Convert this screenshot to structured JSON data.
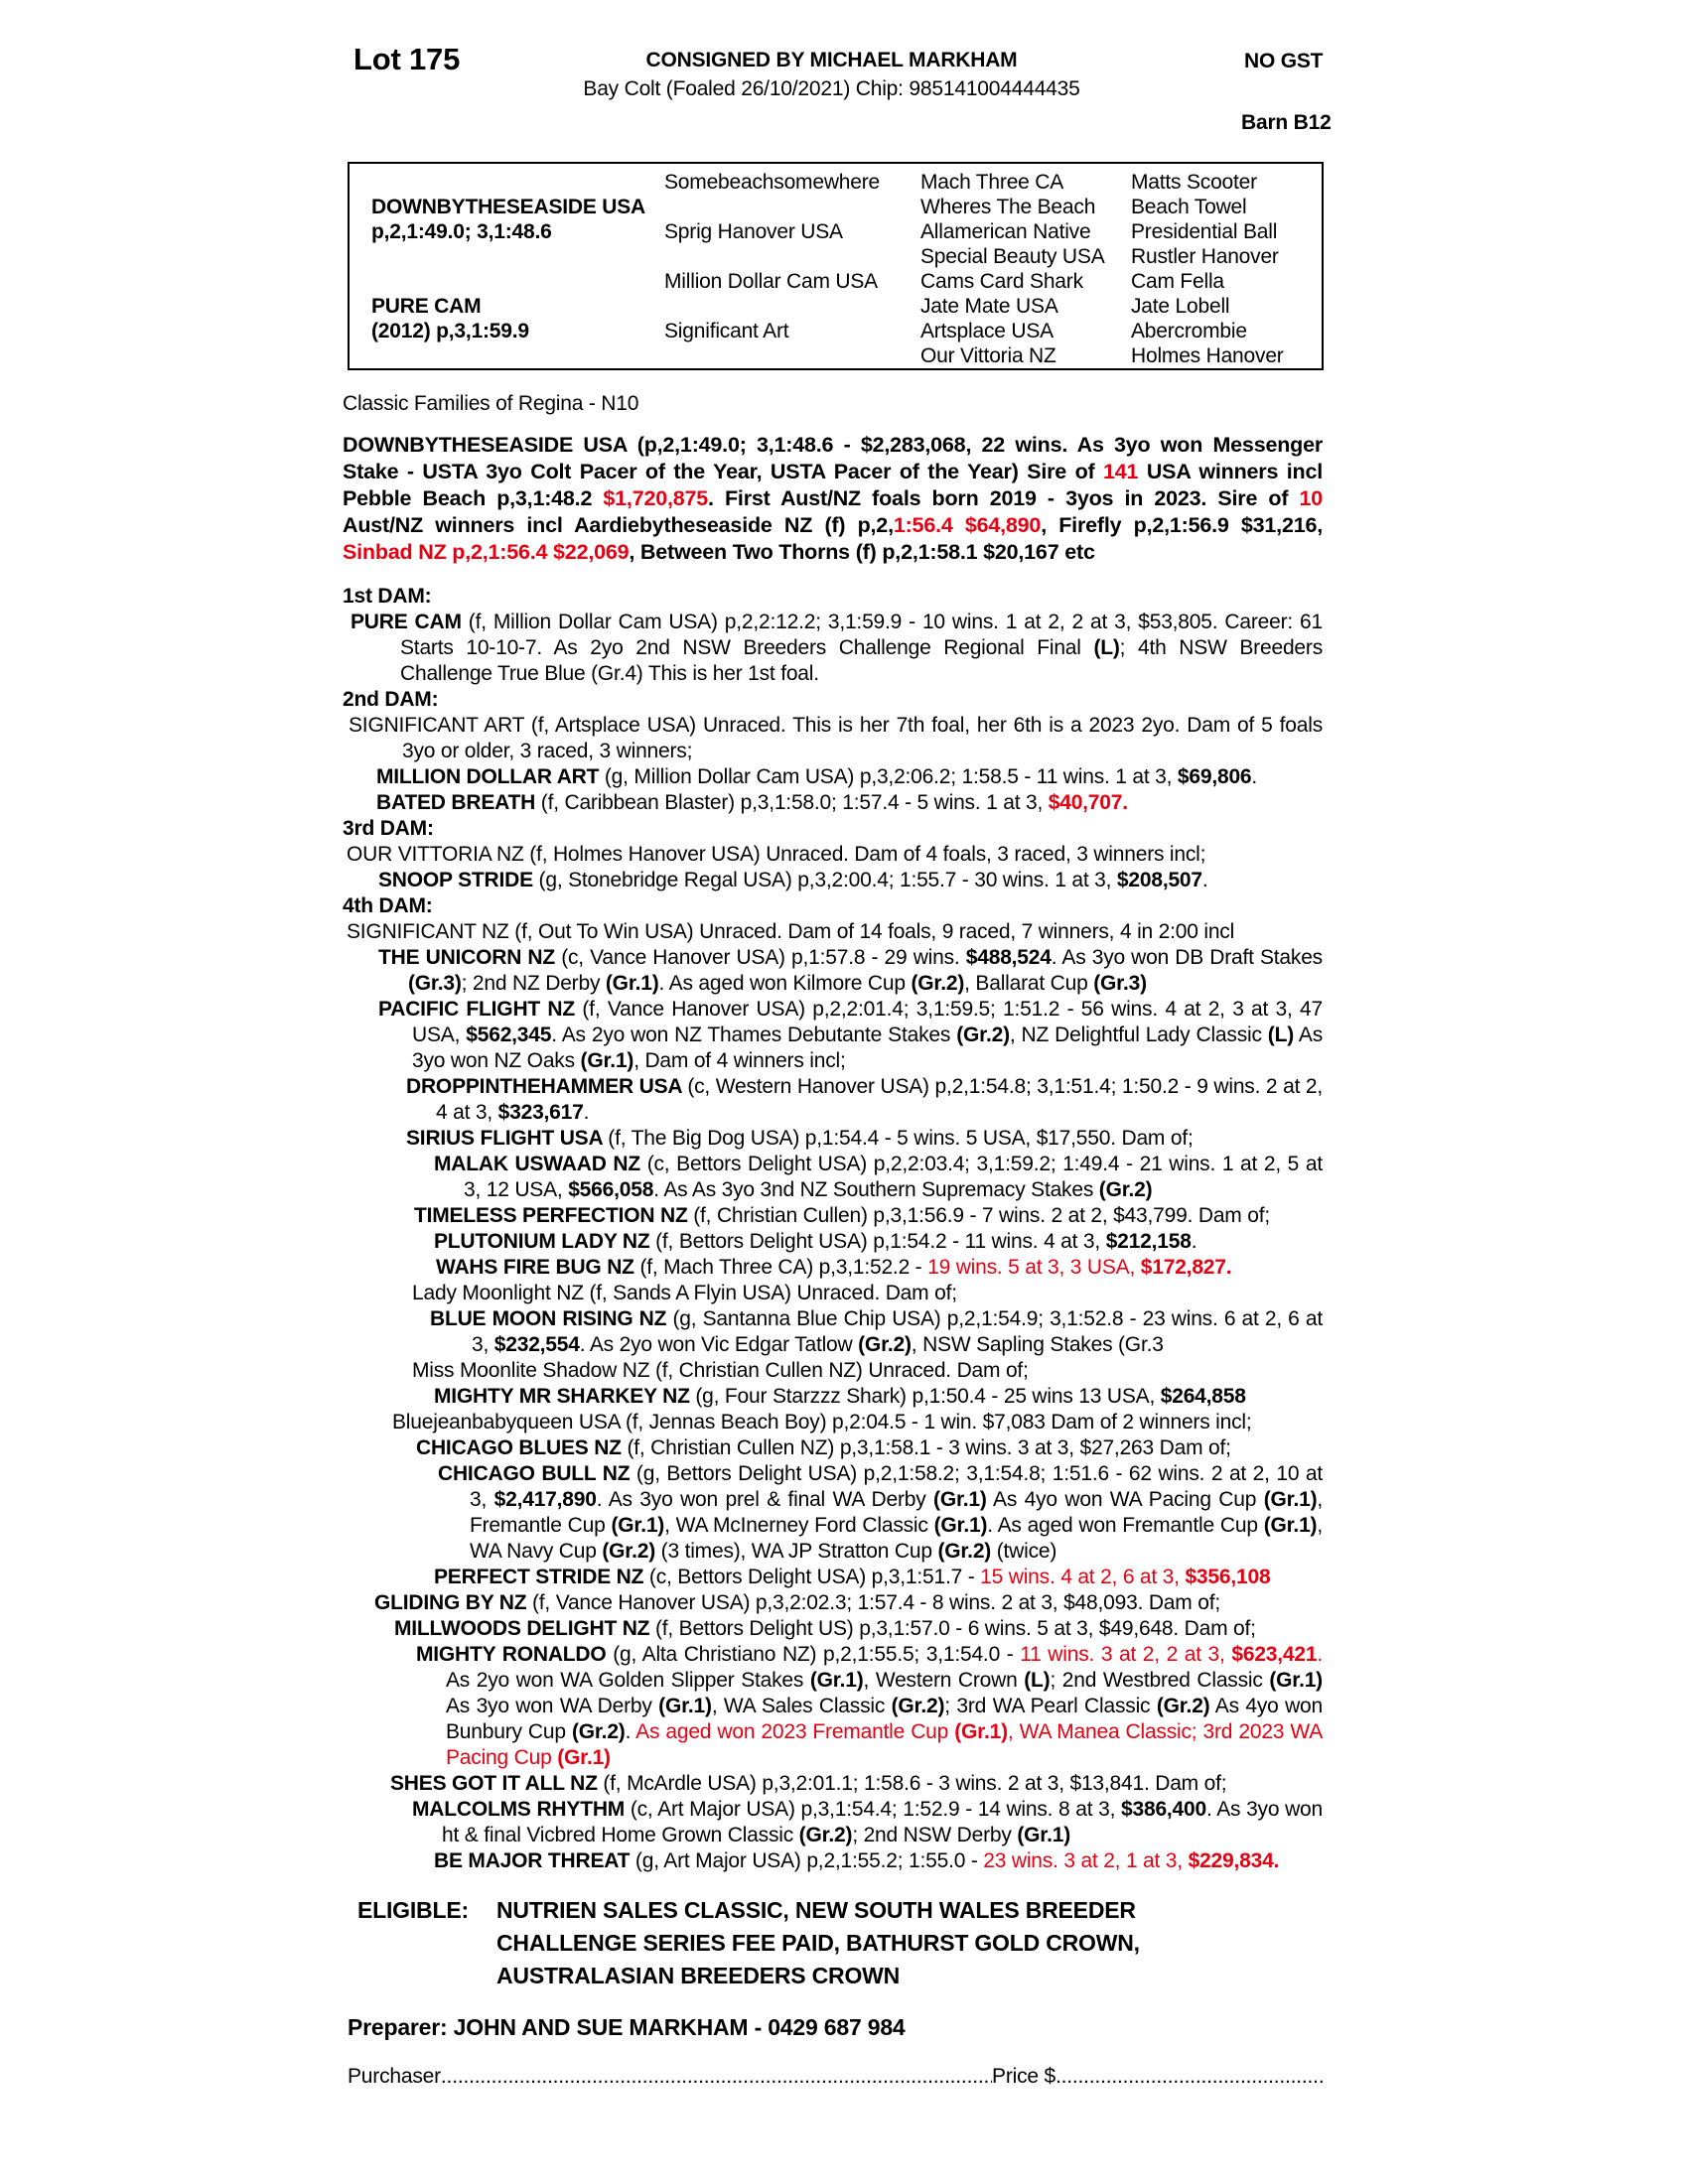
{
  "header": {
    "lot": "Lot 175",
    "consigned": "CONSIGNED BY MICHAEL MARKHAM",
    "foaling": "Bay Colt (Foaled 26/10/2021) Chip: 985141004444435",
    "no_gst": "NO GST",
    "barn": "Barn B12"
  },
  "pedigree_table": {
    "rows": [
      [
        "",
        "Somebeachsomewhere",
        "Mach Three CA",
        "Matts Scooter"
      ],
      [
        "DOWNBYTHESEASIDE USA",
        "",
        "Wheres The Beach",
        "Beach Towel"
      ],
      [
        "p,2,1:49.0; 3,1:48.6",
        "Sprig Hanover USA",
        "Allamerican Native",
        "Presidential Ball"
      ],
      [
        "",
        "",
        "Special Beauty USA",
        "Rustler Hanover"
      ],
      [
        "",
        "Million Dollar Cam USA",
        "Cams Card Shark",
        "Cam Fella"
      ],
      [
        "PURE CAM",
        "",
        "Jate Mate USA",
        "Jate Lobell"
      ],
      [
        "(2012) p,3,1:59.9",
        "Significant Art",
        "Artsplace USA",
        "Abercrombie"
      ],
      [
        "",
        "",
        "Our Vittoria NZ",
        "Holmes Hanover"
      ]
    ]
  },
  "classic_families": "Classic Families of Regina - N10",
  "sire_paragraph": {
    "segments": [
      [
        "b",
        "DOWNBYTHESEASIDE USA (p,2,1:49.0; 3,1:48.6 - $2,283,068, 22 wins. As 3yo won Messenger Stake - USTA 3yo Colt Pacer of the Year, USTA Pacer of the Year) Sire of "
      ],
      [
        "br",
        "141"
      ],
      [
        "b",
        " USA winners incl Pebble Beach p,3,1:48.2 "
      ],
      [
        "br",
        "$1,720,875"
      ],
      [
        "b",
        ". First Aust/NZ foals born 2019 - 3yos in 2023. Sire of "
      ],
      [
        "br",
        "10"
      ],
      [
        "b",
        " Aust/NZ winners incl Aardiebytheseaside NZ (f) p,2,"
      ],
      [
        "br",
        "1:56.4 $64,890"
      ],
      [
        "b",
        ", Firefly p,2,1:56.9 $31,216, "
      ],
      [
        "br",
        "Sinbad NZ p,2,1:56.4 $22,069"
      ],
      [
        "b",
        ", Between Two Thorns (f) p,2,1:58.1 $20,167 etc"
      ]
    ]
  },
  "dam_sections": [
    {
      "label": "1st DAM:",
      "entries": [
        {
          "indent": 8,
          "wrap": 58,
          "segments": [
            [
              "b",
              "PURE CAM "
            ],
            [
              "",
              "(f, Million Dollar Cam USA) p,2,2:12.2; 3,1:59.9 - 10 wins. 1 at 2, 2 at 3, $53,805. Career: 61 Starts 10-10-7. As 2yo 2nd NSW Breeders Challenge Regional Final "
            ],
            [
              "b",
              "(L)"
            ],
            [
              "",
              "; 4th NSW Breeders Challenge True Blue (Gr.4) This is her 1st foal."
            ]
          ]
        }
      ]
    },
    {
      "label": "2nd DAM:",
      "entries": [
        {
          "indent": 6,
          "wrap": 60,
          "segments": [
            [
              "",
              "SIGNIFICANT ART (f, Artsplace USA) Unraced. This is her 7th foal, her 6th is a 2023 2yo. Dam of 5 foals 3yo or older, 3 raced, 3 winners;"
            ]
          ]
        },
        {
          "indent": 34,
          "wrap": 64,
          "segments": [
            [
              "b",
              "MILLION DOLLAR ART "
            ],
            [
              "",
              "(g, Million Dollar Cam USA) p,3,2:06.2; 1:58.5 - 11 wins. 1 at 3, "
            ],
            [
              "b",
              "$69,806"
            ],
            [
              "",
              "."
            ]
          ]
        },
        {
          "indent": 34,
          "wrap": 64,
          "segments": [
            [
              "b",
              "BATED BREATH "
            ],
            [
              "",
              "(f, Caribbean Blaster) p,3,1:58.0; 1:57.4 - 5 wins. 1 at 3, "
            ],
            [
              "br",
              "$40,707."
            ]
          ]
        }
      ]
    },
    {
      "label": "3rd DAM:",
      "entries": [
        {
          "indent": 4,
          "wrap": 34,
          "segments": [
            [
              "",
              "OUR VITTORIA NZ (f, Holmes Hanover USA) Unraced. Dam of 4 foals, 3 raced, 3 winners incl;"
            ]
          ]
        },
        {
          "indent": 36,
          "wrap": 66,
          "segments": [
            [
              "b",
              "SNOOP STRIDE "
            ],
            [
              "",
              "(g, Stonebridge Regal USA) p,3,2:00.4; 1:55.7 - 30 wins. 1 at 3, "
            ],
            [
              "b",
              "$208,507"
            ],
            [
              "",
              "."
            ]
          ]
        }
      ]
    },
    {
      "label": "4th DAM:",
      "entries": [
        {
          "indent": 4,
          "wrap": 34,
          "segments": [
            [
              "",
              "SIGNIFICANT NZ (f, Out To Win USA) Unraced. Dam of 14 foals, 9 raced, 7 winners, 4 in 2:00 incl"
            ]
          ]
        },
        {
          "indent": 36,
          "wrap": 66,
          "segments": [
            [
              "b",
              "THE UNICORN NZ "
            ],
            [
              "",
              "(c, Vance Hanover USA) p,1:57.8 - 29 wins. "
            ],
            [
              "b",
              "$488,524"
            ],
            [
              "",
              ". As 3yo won DB Draft Stakes "
            ],
            [
              "b",
              "(Gr.3)"
            ],
            [
              "",
              "; 2nd NZ Derby "
            ],
            [
              "b",
              "(Gr.1)"
            ],
            [
              "",
              ". As aged won Kilmore Cup "
            ],
            [
              "b",
              "(Gr.2)"
            ],
            [
              "",
              ", Ballarat Cup "
            ],
            [
              "b",
              "(Gr.3)"
            ]
          ]
        },
        {
          "indent": 36,
          "wrap": 70,
          "segments": [
            [
              "b",
              "PACIFIC FLIGHT NZ "
            ],
            [
              "",
              "(f, Vance Hanover USA) p,2,2:01.4; 3,1:59.5; 1:51.2 - 56 wins. 4 at 2, 3 at 3, 47 USA, "
            ],
            [
              "b",
              "$562,345"
            ],
            [
              "",
              ". As 2yo won NZ Thames Debutante Stakes "
            ],
            [
              "b",
              "(Gr.2)"
            ],
            [
              "",
              ", NZ Delightful Lady Classic "
            ],
            [
              "b",
              "(L)"
            ],
            [
              "",
              " As 3yo won NZ Oaks "
            ],
            [
              "b",
              "(Gr.1)"
            ],
            [
              "",
              ", Dam of 4 winners incl;"
            ]
          ]
        },
        {
          "indent": 64,
          "wrap": 94,
          "segments": [
            [
              "b",
              "DROPPINTHEHAMMER USA "
            ],
            [
              "",
              "(c, Western Hanover USA) p,2,1:54.8; 3,1:51.4; 1:50.2 - 9 wins. 2 at 2, 4 at 3, "
            ],
            [
              "b",
              "$323,617"
            ],
            [
              "",
              "."
            ]
          ]
        },
        {
          "indent": 64,
          "wrap": 94,
          "segments": [
            [
              "b",
              "SIRIUS FLIGHT USA "
            ],
            [
              "",
              "(f, The Big Dog USA) p,1:54.4 - 5 wins. 5 USA, $17,550. Dam of;"
            ]
          ]
        },
        {
          "indent": 92,
          "wrap": 122,
          "segments": [
            [
              "b",
              "MALAK USWAAD NZ "
            ],
            [
              "",
              "(c, Bettors Delight USA) p,2,2:03.4; 3,1:59.2; 1:49.4 - 21 wins. 1 at 2, 5 at 3, 12 USA, "
            ],
            [
              "b",
              "$566,058"
            ],
            [
              "",
              ". As As 3yo 3nd NZ Southern Supremacy Stakes "
            ],
            [
              "b",
              "(Gr.2)"
            ]
          ]
        },
        {
          "indent": 72,
          "wrap": 102,
          "segments": [
            [
              "b",
              "TIMELESS PERFECTION NZ "
            ],
            [
              "",
              "(f, Christian Cullen) p,3,1:56.9 - 7 wins. 2 at 2, $43,799. Dam of;"
            ]
          ]
        },
        {
          "indent": 92,
          "wrap": 122,
          "segments": [
            [
              "b",
              "PLUTONIUM LADY NZ "
            ],
            [
              "",
              "(f, Bettors Delight USA) p,1:54.2 - 11 wins. 4 at 3, "
            ],
            [
              "b",
              "$212,158"
            ],
            [
              "",
              "."
            ]
          ]
        },
        {
          "indent": 94,
          "wrap": 124,
          "segments": [
            [
              "b",
              "WAHS FIRE BUG NZ "
            ],
            [
              "",
              "(f, Mach Three CA) p,3,1:52.2 - "
            ],
            [
              "r",
              "19 wins. 5 at 3, 3 USA, "
            ],
            [
              "br",
              "$172,827."
            ]
          ]
        },
        {
          "indent": 70,
          "wrap": 100,
          "segments": [
            [
              "",
              "Lady Moonlight NZ (f, Sands A Flyin USA) Unraced. Dam of;"
            ]
          ]
        },
        {
          "indent": 88,
          "wrap": 130,
          "segments": [
            [
              "b",
              "BLUE MOON RISING NZ "
            ],
            [
              "",
              "(g, Santanna Blue Chip USA) p,2,1:54.9; 3,1:52.8 - 23 wins. 6 at 2, 6 at 3, "
            ],
            [
              "b",
              "$232,554"
            ],
            [
              "",
              ". As 2yo won Vic Edgar Tatlow "
            ],
            [
              "b",
              "(Gr.2)"
            ],
            [
              "",
              ", NSW Sapling Stakes (Gr.3"
            ]
          ]
        },
        {
          "indent": 70,
          "wrap": 100,
          "segments": [
            [
              "",
              "Miss Moonlite Shadow NZ (f, Christian Cullen NZ) Unraced. Dam of;"
            ]
          ]
        },
        {
          "indent": 92,
          "wrap": 122,
          "segments": [
            [
              "b",
              "MIGHTY MR SHARKEY NZ "
            ],
            [
              "",
              "(g, Four Starzzz Shark) p,1:50.4 - 25 wins 13 USA, "
            ],
            [
              "b",
              "$264,858"
            ]
          ]
        },
        {
          "indent": 50,
          "wrap": 80,
          "segments": [
            [
              "",
              "Bluejeanbabyqueen USA (f, Jennas Beach Boy) p,2:04.5 - 1 win. $7,083 Dam of 2 winners incl;"
            ]
          ]
        },
        {
          "indent": 74,
          "wrap": 104,
          "segments": [
            [
              "b",
              "CHICAGO BLUES NZ "
            ],
            [
              "",
              "(f, Christian Cullen NZ) p,3,1:58.1 - 3 wins. 3 at 3, $27,263 Dam of;"
            ]
          ]
        },
        {
          "indent": 96,
          "wrap": 128,
          "segments": [
            [
              "b",
              "CHICAGO BULL NZ "
            ],
            [
              "",
              "(g, Bettors Delight USA) p,2,1:58.2; 3,1:54.8; 1:51.6 - 62 wins. 2 at 2, 10 at 3, "
            ],
            [
              "b",
              "$2,417,890"
            ],
            [
              "",
              ". As 3yo won prel & final WA Derby "
            ],
            [
              "b",
              "(Gr.1)"
            ],
            [
              "",
              " As 4yo won WA Pacing Cup "
            ],
            [
              "b",
              "(Gr.1)"
            ],
            [
              "",
              ", Fremantle Cup "
            ],
            [
              "b",
              "(Gr.1)"
            ],
            [
              "",
              ", WA McInerney Ford Classic "
            ],
            [
              "b",
              "(Gr.1)"
            ],
            [
              "",
              ". As aged won Fremantle Cup "
            ],
            [
              "b",
              "(Gr.1)"
            ],
            [
              "",
              ", WA Navy Cup "
            ],
            [
              "b",
              "(Gr.2)"
            ],
            [
              "",
              " (3 times), WA JP Stratton Cup "
            ],
            [
              "b",
              "(Gr.2)"
            ],
            [
              "",
              " (twice)"
            ]
          ]
        },
        {
          "indent": 92,
          "wrap": 122,
          "segments": [
            [
              "b",
              "PERFECT STRIDE NZ "
            ],
            [
              "",
              "(c, Bettors Delight USA) p,3,1:51.7 - "
            ],
            [
              "r",
              "15 wins. 4 at 2, 6 at 3, "
            ],
            [
              "br",
              "$356,108"
            ]
          ]
        },
        {
          "indent": 32,
          "wrap": 62,
          "segments": [
            [
              "b",
              "GLIDING BY NZ "
            ],
            [
              "",
              "(f, Vance Hanover USA) p,3,2:02.3; 1:57.4 - 8 wins. 2 at 3, $48,093. Dam of;"
            ]
          ]
        },
        {
          "indent": 52,
          "wrap": 82,
          "segments": [
            [
              "b",
              "MILLWOODS DELIGHT NZ "
            ],
            [
              "",
              "(f, Bettors Delight US) p,3,1:57.0 - 6 wins. 5 at 3, $49,648. Dam of;"
            ]
          ]
        },
        {
          "indent": 74,
          "wrap": 104,
          "segments": [
            [
              "b",
              "MIGHTY RONALDO "
            ],
            [
              "",
              "(g, Alta Christiano NZ) p,2,1:55.5; 3,1:54.0 - "
            ],
            [
              "r",
              "11 wins. 3 at 2, 2 at 3, "
            ],
            [
              "br",
              "$623,421"
            ],
            [
              "r",
              ". "
            ],
            [
              "",
              "As 2yo won WA Golden Slipper Stakes "
            ],
            [
              "b",
              "(Gr.1)"
            ],
            [
              "",
              ", Western Crown "
            ],
            [
              "b",
              "(L)"
            ],
            [
              "",
              "; 2nd Westbred Classic "
            ],
            [
              "b",
              "(Gr.1)"
            ],
            [
              "",
              " As 3yo won WA Derby "
            ],
            [
              "b",
              "(Gr.1)"
            ],
            [
              "",
              ", WA Sales Classic "
            ],
            [
              "b",
              "(Gr.2)"
            ],
            [
              "",
              "; 3rd WA Pearl Classic "
            ],
            [
              "b",
              "(Gr.2)"
            ],
            [
              "",
              " As 4yo won Bunbury Cup "
            ],
            [
              "b",
              "(Gr.2)"
            ],
            [
              "",
              ". "
            ],
            [
              "r",
              "As aged won 2023 Fremantle Cup "
            ],
            [
              "br",
              "(Gr.1)"
            ],
            [
              "r",
              ", WA Manea Classic; 3rd 2023 WA Pacing Cup "
            ],
            [
              "br",
              "(Gr.1)"
            ]
          ]
        },
        {
          "indent": 48,
          "wrap": 78,
          "segments": [
            [
              "b",
              "SHES GOT IT ALL NZ "
            ],
            [
              "",
              "(f, McArdle USA) p,3,2:01.1; 1:58.6 - 3 wins. 2 at 3, $13,841. Dam of;"
            ]
          ]
        },
        {
          "indent": 70,
          "wrap": 100,
          "segments": [
            [
              "b",
              "MALCOLMS RHYTHM "
            ],
            [
              "",
              "(c, Art Major USA) p,3,1:54.4; 1:52.9 - 14 wins. 8 at 3, "
            ],
            [
              "b",
              "$386,400"
            ],
            [
              "",
              ". As 3yo won ht & final Vicbred Home Grown Classic "
            ],
            [
              "b",
              "(Gr.2)"
            ],
            [
              "",
              "; 2nd NSW Derby "
            ],
            [
              "b",
              "(Gr.1)"
            ]
          ]
        },
        {
          "indent": 92,
          "wrap": 122,
          "segments": [
            [
              "b",
              "BE MAJOR THREAT "
            ],
            [
              "",
              "(g, Art Major USA) p,2,1:55.2; 1:55.0 - "
            ],
            [
              "r",
              "23 wins. 3 at 2, 1 at 3, "
            ],
            [
              "br",
              "$229,834."
            ]
          ]
        }
      ]
    }
  ],
  "eligible": {
    "label": "ELIGIBLE:",
    "lines": [
      "NUTRIEN SALES CLASSIC, NEW SOUTH WALES BREEDER",
      "CHALLENGE SERIES FEE PAID, BATHURST GOLD CROWN,",
      "AUSTRALASIAN BREEDERS CROWN"
    ]
  },
  "preparer": "Preparer: JOHN AND SUE MARKHAM - 0429 687 984",
  "purchaser": {
    "label": "Purchaser",
    "leader": "........................................................................................................................................................",
    "price_label": "Price $",
    "leader2": "........................................................................................................................................................"
  }
}
